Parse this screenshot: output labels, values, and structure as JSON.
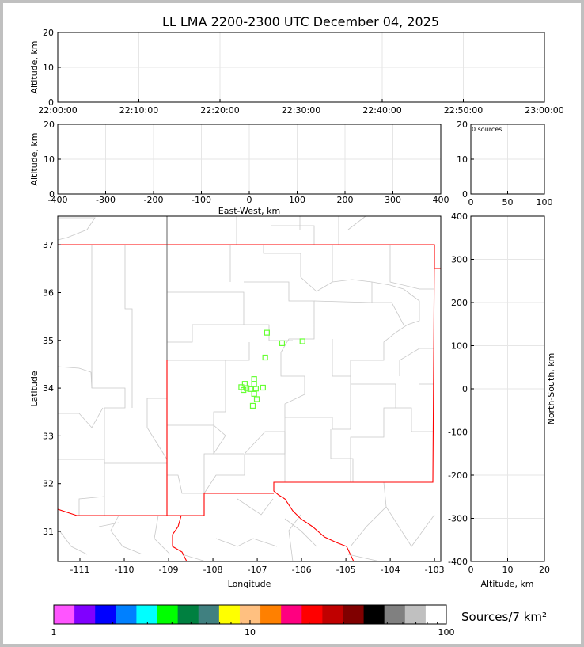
{
  "chart_data": [
    {
      "type": "scatter",
      "id": "time-altitude",
      "title": "LL LMA 2200-2300 UTC December 04, 2025",
      "xlabel": "",
      "ylabel": "Altitude, km",
      "xticks": [
        "22:00:00",
        "22:10:00",
        "22:20:00",
        "22:30:00",
        "22:40:00",
        "22:50:00",
        "23:00:00"
      ],
      "yticks": [
        0,
        10,
        20
      ],
      "ylim": [
        0,
        20
      ],
      "grid": true,
      "points": []
    },
    {
      "type": "scatter",
      "id": "ew-altitude",
      "xlabel": "East-West, km",
      "ylabel": "Altitude, km",
      "xlim": [
        -400,
        400
      ],
      "xticks": [
        -400,
        -300,
        -200,
        -100,
        0,
        100,
        200,
        300,
        400
      ],
      "ylim": [
        0,
        20
      ],
      "yticks": [
        0,
        10,
        20
      ],
      "grid": true,
      "points": []
    },
    {
      "type": "histogram",
      "id": "altitude-histogram",
      "annotation": "0 sources",
      "xlim": [
        0,
        100
      ],
      "xticks": [
        0,
        50,
        100
      ],
      "ylim": [
        0,
        20
      ],
      "yticks": [
        0,
        10,
        20
      ],
      "grid": true
    },
    {
      "type": "scatter",
      "id": "plan-view",
      "xlabel": "Longitude",
      "ylabel": "Latitude",
      "xlim": [
        -111.5,
        -102.86
      ],
      "ylim": [
        30.37,
        37.6
      ],
      "xticks": [
        -111,
        -110,
        -109,
        -108,
        -107,
        -106,
        -105,
        -104,
        -103
      ],
      "yticks": [
        31,
        32,
        33,
        34,
        35,
        36,
        37
      ],
      "marker_color": "#66ff33",
      "state_border_color": "#ff0000",
      "county_border_color": "#c8c8c8",
      "points": [
        {
          "lon": -106.78,
          "lat": 35.16
        },
        {
          "lon": -106.44,
          "lat": 34.94
        },
        {
          "lon": -105.98,
          "lat": 34.98
        },
        {
          "lon": -106.82,
          "lat": 34.64
        },
        {
          "lon": -107.07,
          "lat": 34.19
        },
        {
          "lon": -107.07,
          "lat": 34.08
        },
        {
          "lon": -107.28,
          "lat": 34.09
        },
        {
          "lon": -107.36,
          "lat": 34.02
        },
        {
          "lon": -107.31,
          "lat": 33.96
        },
        {
          "lon": -107.24,
          "lat": 34.0
        },
        {
          "lon": -107.16,
          "lat": 33.98
        },
        {
          "lon": -107.03,
          "lat": 33.99
        },
        {
          "lon": -106.87,
          "lat": 34.01
        },
        {
          "lon": -107.07,
          "lat": 33.88
        },
        {
          "lon": -107.01,
          "lat": 33.77
        },
        {
          "lon": -107.1,
          "lat": 33.63
        }
      ]
    },
    {
      "type": "scatter",
      "id": "altitude-ns",
      "xlabel": "Altitude, km",
      "ylabel": "North-South, km",
      "xlim": [
        0,
        20
      ],
      "xticks": [
        0,
        10,
        20
      ],
      "ylim": [
        -400,
        400
      ],
      "yticks": [
        -400,
        -300,
        -200,
        -100,
        0,
        100,
        200,
        300,
        400
      ],
      "grid": true,
      "points": []
    },
    {
      "type": "colorbar",
      "id": "density-colorbar",
      "label": "Sources/7 km²",
      "scale": "log",
      "range": [
        1,
        100
      ],
      "tick_labels": [
        "1",
        "10",
        "100"
      ],
      "colors": [
        "#ff55ff",
        "#8000ff",
        "#0000ff",
        "#0080ff",
        "#00ffff",
        "#00ff00",
        "#008040",
        "#408080",
        "#ffff00",
        "#ffc080",
        "#ff8000",
        "#ff0080",
        "#ff0000",
        "#c00000",
        "#800000",
        "#000000",
        "#808080",
        "#c0c0c0",
        "#ffffff"
      ]
    }
  ]
}
